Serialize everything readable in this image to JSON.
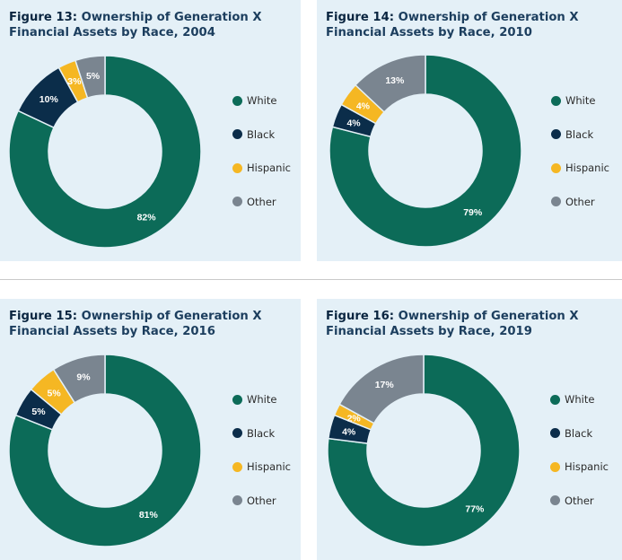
{
  "legend_items": [
    {
      "label": "White",
      "color": "#0c6b58"
    },
    {
      "label": "Black",
      "color": "#0b2d4a"
    },
    {
      "label": "Hispanic",
      "color": "#f5b723"
    },
    {
      "label": "Other",
      "color": "#7a8590"
    }
  ],
  "chart_data": [
    {
      "type": "pie",
      "title_prefix": "Figure 13:",
      "title": "Ownership of Generation X Financial Assets by Race, 2004",
      "categories": [
        "White",
        "Black",
        "Hispanic",
        "Other"
      ],
      "values": [
        82,
        10,
        3,
        5
      ],
      "labels": [
        "82%",
        "10%",
        "3%",
        "5%"
      ]
    },
    {
      "type": "pie",
      "title_prefix": "Figure 14:",
      "title": "Ownership of Generation X Financial Assets by Race, 2010",
      "categories": [
        "White",
        "Black",
        "Hispanic",
        "Other"
      ],
      "values": [
        79,
        4,
        4,
        13
      ],
      "labels": [
        "79%",
        "4%",
        "4%",
        "13%"
      ]
    },
    {
      "type": "pie",
      "title_prefix": "Figure 15:",
      "title": "Ownership of Generation X Financial Assets by Race, 2016",
      "categories": [
        "White",
        "Black",
        "Hispanic",
        "Other"
      ],
      "values": [
        81,
        5,
        5,
        9
      ],
      "labels": [
        "81%",
        "5%",
        "5%",
        "9%"
      ]
    },
    {
      "type": "pie",
      "title_prefix": "Figure 16:",
      "title": "Ownership of Generation X Financial Assets by Race, 2019",
      "categories": [
        "White",
        "Black",
        "Hispanic",
        "Other"
      ],
      "values": [
        77,
        4,
        2,
        17
      ],
      "labels": [
        "77%",
        "4%",
        "2%",
        "17%"
      ]
    }
  ]
}
